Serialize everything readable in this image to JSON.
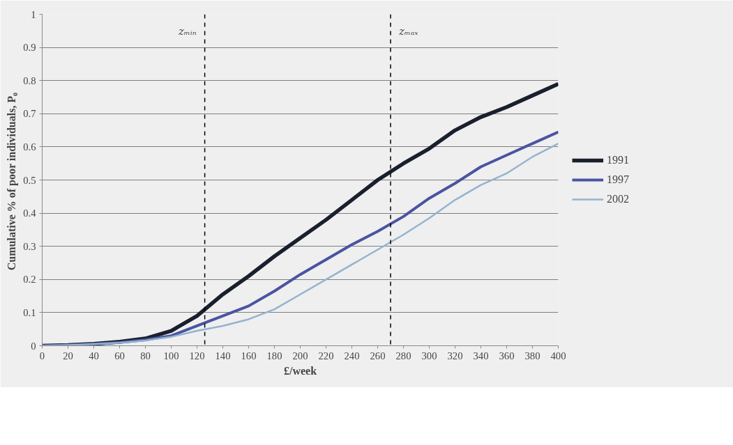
{
  "chart_data": {
    "type": "line",
    "xlabel": "£/week",
    "ylabel": "Cumulative % of  poor individuals, P₀",
    "x": [
      0,
      20,
      40,
      60,
      80,
      100,
      120,
      140,
      160,
      180,
      200,
      220,
      240,
      260,
      280,
      300,
      320,
      340,
      360,
      380,
      400
    ],
    "series": [
      {
        "name": "1991",
        "color": "#1a1f2e",
        "values": [
          0,
          0.002,
          0.006,
          0.012,
          0.022,
          0.045,
          0.09,
          0.155,
          0.21,
          0.27,
          0.325,
          0.38,
          0.44,
          0.5,
          0.55,
          0.595,
          0.65,
          0.69,
          0.72,
          0.755,
          0.79
        ]
      },
      {
        "name": "1997",
        "color": "#4a54a0",
        "values": [
          0,
          0.002,
          0.005,
          0.01,
          0.018,
          0.03,
          0.06,
          0.09,
          0.12,
          0.165,
          0.215,
          0.26,
          0.305,
          0.345,
          0.39,
          0.445,
          0.49,
          0.54,
          0.575,
          0.61,
          0.645
        ]
      },
      {
        "name": "2002",
        "color": "#93b3cf",
        "values": [
          0,
          0.002,
          0.005,
          0.009,
          0.016,
          0.027,
          0.045,
          0.06,
          0.08,
          0.11,
          0.155,
          0.2,
          0.245,
          0.29,
          0.335,
          0.385,
          0.44,
          0.485,
          0.52,
          0.57,
          0.61
        ]
      }
    ],
    "xlim": [
      0,
      400
    ],
    "xticks": [
      0,
      20,
      40,
      60,
      80,
      100,
      120,
      140,
      160,
      180,
      200,
      220,
      240,
      260,
      280,
      300,
      320,
      340,
      360,
      380,
      400
    ],
    "ylim": [
      0,
      1
    ],
    "yticks": [
      0,
      0.1,
      0.2,
      0.3,
      0.4,
      0.5,
      0.6,
      0.7,
      0.8,
      0.9,
      1
    ],
    "ref_lines": [
      {
        "axis": "x",
        "value": 126,
        "label": "zₘᵢₙ",
        "color": "#000000",
        "line_style": "dashed"
      },
      {
        "axis": "x",
        "value": 270,
        "label": "zₘₐₓ",
        "color": "#000000",
        "line_style": "dashed"
      }
    ],
    "grid": "y",
    "legend": "right",
    "marker": "none",
    "line_style": "solid"
  }
}
